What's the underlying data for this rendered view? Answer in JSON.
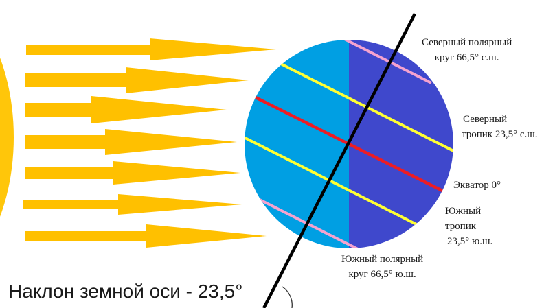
{
  "labels": {
    "north_polar_circle": {
      "line1": "Северный полярный",
      "line2": "круг 66,5° с.ш."
    },
    "north_tropic": {
      "line1": "Северный",
      "line2": "тропик 23,5° с.ш."
    },
    "equator": "Экватор 0°",
    "south_tropic": {
      "line1": "Южный",
      "line2": "тропик",
      "line3": "23,5° ю.ш."
    },
    "south_polar_circle": {
      "line1": "Южный полярный",
      "line2": "круг 66,5° ю.ш."
    }
  },
  "caption": "Наклон земной оси - 23,5°",
  "colors": {
    "sun": "#ffc60a",
    "arrow": "#ffc000",
    "day_side": "#009fe3",
    "night_side": "#3f48cc",
    "axis": "#000000",
    "equator": "#ed1c24",
    "tropic": "#ffff33",
    "polar_circle": "#f5a3cf",
    "angle_arc": "#333333"
  }
}
